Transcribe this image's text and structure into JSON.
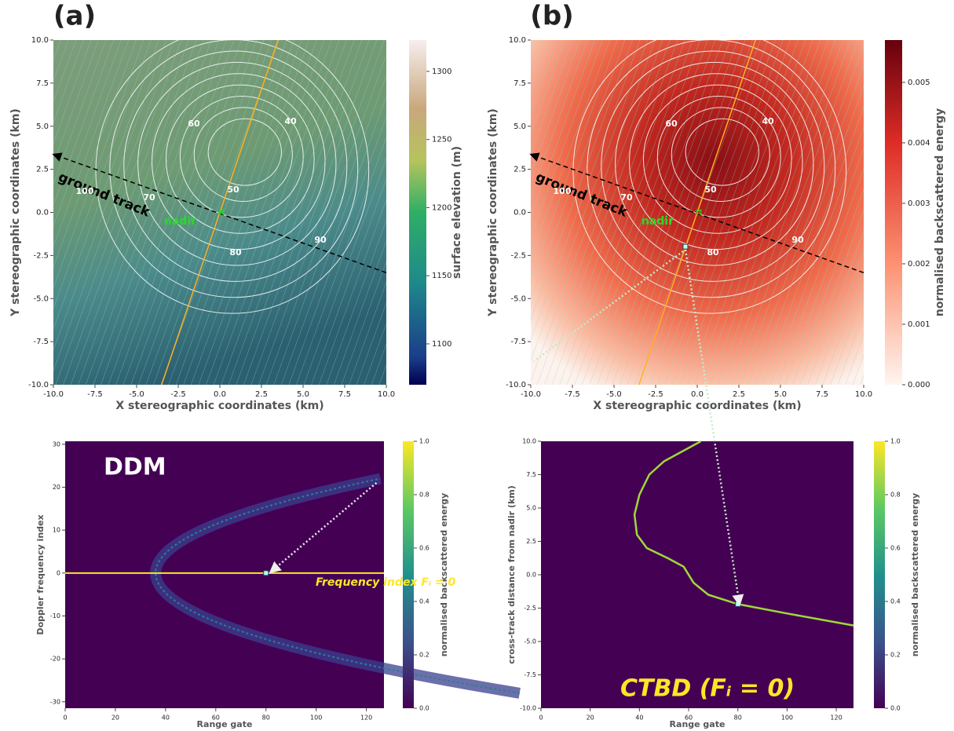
{
  "chart_data": [
    {
      "type": "heatmap",
      "panel_label": "(a)",
      "x_label": "X stereographic coordinates (km)",
      "y_label": "Y stereographic coordinates (km)",
      "xlim": [
        -10,
        10
      ],
      "ylim": [
        -10,
        10
      ],
      "xticks": [
        {
          "value": -10,
          "label": "-10.0"
        },
        -7.5,
        {
          "value": -5,
          "label": "-5.0"
        },
        -2.5,
        {
          "value": 0,
          "label": "0.0"
        },
        2.5,
        {
          "value": 5,
          "label": "5.0"
        },
        7.5,
        {
          "value": 10,
          "label": "10.0"
        }
      ],
      "yticks": [
        {
          "value": -10,
          "label": "-10.0"
        },
        -7.5,
        {
          "value": -5,
          "label": "-5.0"
        },
        -2.5,
        {
          "value": 0,
          "label": "0.0"
        },
        2.5,
        {
          "value": 5,
          "label": "5.0"
        },
        7.5,
        {
          "value": 10,
          "label": "10.0"
        }
      ],
      "colorbar": {
        "label": "surface elevation (m)",
        "lim": [
          1070,
          1323
        ],
        "ticks": [
          1100,
          1150,
          1200,
          1250,
          1300
        ]
      },
      "annotations": [
        "ground track",
        "nadir",
        "60",
        "40",
        "100",
        "70",
        "50",
        "80",
        "90"
      ]
    },
    {
      "type": "heatmap",
      "panel_label": "(b)",
      "x_label": "X stereographic coordinates (km)",
      "y_label": "Y stereographic coordinates (km)",
      "xlim": [
        -10,
        10
      ],
      "ylim": [
        -10,
        10
      ],
      "xticks": [
        {
          "value": -10,
          "label": "-10.0"
        },
        -7.5,
        {
          "value": -5,
          "label": "-5.0"
        },
        -2.5,
        {
          "value": 0,
          "label": "0.0"
        },
        2.5,
        {
          "value": 5,
          "label": "5.0"
        },
        7.5,
        {
          "value": 10,
          "label": "10.0"
        }
      ],
      "yticks": [
        {
          "value": -10,
          "label": "-10.0"
        },
        -7.5,
        {
          "value": -5,
          "label": "-5.0"
        },
        -2.5,
        {
          "value": 0,
          "label": "0.0"
        },
        2.5,
        {
          "value": 5,
          "label": "5.0"
        },
        7.5,
        {
          "value": 10,
          "label": "10.0"
        }
      ],
      "colorbar": {
        "label": "normalised backscattered energy",
        "lim": [
          0,
          0.0057
        ],
        "ticks": [
          {
            "value": 0,
            "label": "0.000"
          },
          0.001,
          0.002,
          0.003,
          0.004,
          0.005
        ]
      },
      "annotations": [
        "ground track",
        "nadir",
        "60",
        "40",
        "100",
        "70",
        "50",
        "80",
        "90"
      ]
    },
    {
      "type": "heatmap",
      "x_label": "Range gate",
      "y_label": "Doppler frequency index",
      "xlim": [
        0,
        127
      ],
      "ylim": [
        -31.5,
        30.7
      ],
      "xticks": [
        0,
        20,
        40,
        60,
        80,
        100,
        120
      ],
      "yticks": [
        -30,
        -20,
        -10,
        0,
        10,
        20,
        30
      ],
      "colorbar": {
        "label": "normalised backscattered energy",
        "lim": [
          0,
          1
        ],
        "ticks": [
          {
            "value": 0,
            "label": "0.0"
          },
          0.2,
          0.4,
          0.6,
          0.8,
          {
            "value": 1,
            "label": "1.0"
          }
        ]
      },
      "annotations": [
        "DDM",
        "Frequency index Fᵢ = 0"
      ]
    },
    {
      "type": "heatmap",
      "x_label": "Range gate",
      "y_label": "cross-track distance from nadir (km)",
      "xlim": [
        0,
        127
      ],
      "ylim": [
        -10,
        10
      ],
      "xticks": [
        0,
        20,
        40,
        60,
        80,
        100,
        120
      ],
      "yticks": [
        {
          "value": -10,
          "label": "-10.0"
        },
        -7.5,
        {
          "value": -5,
          "label": "-5.0"
        },
        -2.5,
        {
          "value": 0,
          "label": "0.0"
        },
        2.5,
        {
          "value": 5,
          "label": "5.0"
        },
        7.5,
        {
          "value": 10,
          "label": "10.0"
        }
      ],
      "colorbar": {
        "label": "normalised backscattered energy",
        "lim": [
          0,
          1
        ],
        "ticks": [
          {
            "value": 0,
            "label": "0.0"
          },
          0.2,
          0.4,
          0.6,
          0.8,
          {
            "value": 1,
            "label": "1.0"
          }
        ]
      },
      "annotations": [
        "CTBD (Fᵢ = 0)"
      ]
    }
  ]
}
